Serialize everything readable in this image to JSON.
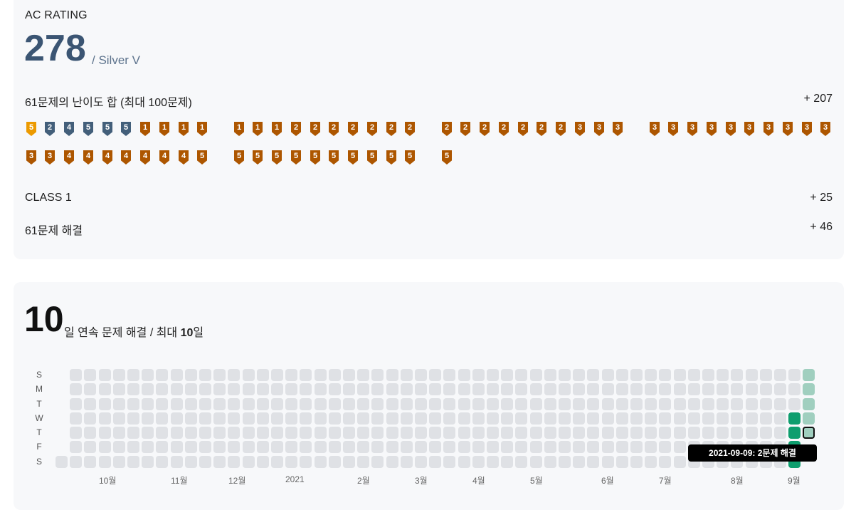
{
  "ac_rating": {
    "label": "AC RATING",
    "value": "278",
    "tier": "/ Silver V",
    "difficulty_sum_label": "61문제의 난이도 합 (최대 100문제)",
    "difficulty_sum_value": "+ 207",
    "class_label": "CLASS 1",
    "class_value": "+ 25",
    "solved_label": "61문제 해결",
    "solved_value": "+ 46",
    "badge_colors": {
      "bronze": "#ad5600",
      "silver": "#435f7a",
      "gold": "#ec9a00"
    },
    "badges": [
      {
        "tier": "gold",
        "level": "5"
      },
      {
        "tier": "silver",
        "level": "2"
      },
      {
        "tier": "silver",
        "level": "4"
      },
      {
        "tier": "silver",
        "level": "5"
      },
      {
        "tier": "silver",
        "level": "5"
      },
      {
        "tier": "silver",
        "level": "5"
      },
      {
        "tier": "bronze",
        "level": "1"
      },
      {
        "tier": "bronze",
        "level": "1"
      },
      {
        "tier": "bronze",
        "level": "1"
      },
      {
        "tier": "bronze",
        "level": "1"
      },
      {
        "tier": "bronze",
        "level": "1"
      },
      {
        "tier": "bronze",
        "level": "1"
      },
      {
        "tier": "bronze",
        "level": "1"
      },
      {
        "tier": "bronze",
        "level": "2"
      },
      {
        "tier": "bronze",
        "level": "2"
      },
      {
        "tier": "bronze",
        "level": "2"
      },
      {
        "tier": "bronze",
        "level": "2"
      },
      {
        "tier": "bronze",
        "level": "2"
      },
      {
        "tier": "bronze",
        "level": "2"
      },
      {
        "tier": "bronze",
        "level": "2"
      },
      {
        "tier": "bronze",
        "level": "2"
      },
      {
        "tier": "bronze",
        "level": "2"
      },
      {
        "tier": "bronze",
        "level": "2"
      },
      {
        "tier": "bronze",
        "level": "2"
      },
      {
        "tier": "bronze",
        "level": "2"
      },
      {
        "tier": "bronze",
        "level": "2"
      },
      {
        "tier": "bronze",
        "level": "2"
      },
      {
        "tier": "bronze",
        "level": "3"
      },
      {
        "tier": "bronze",
        "level": "3"
      },
      {
        "tier": "bronze",
        "level": "3"
      },
      {
        "tier": "bronze",
        "level": "3"
      },
      {
        "tier": "bronze",
        "level": "3"
      },
      {
        "tier": "bronze",
        "level": "3"
      },
      {
        "tier": "bronze",
        "level": "3"
      },
      {
        "tier": "bronze",
        "level": "3"
      },
      {
        "tier": "bronze",
        "level": "3"
      },
      {
        "tier": "bronze",
        "level": "3"
      },
      {
        "tier": "bronze",
        "level": "3"
      },
      {
        "tier": "bronze",
        "level": "3"
      },
      {
        "tier": "bronze",
        "level": "3"
      },
      {
        "tier": "bronze",
        "level": "3"
      },
      {
        "tier": "bronze",
        "level": "3"
      },
      {
        "tier": "bronze",
        "level": "4"
      },
      {
        "tier": "bronze",
        "level": "4"
      },
      {
        "tier": "bronze",
        "level": "4"
      },
      {
        "tier": "bronze",
        "level": "4"
      },
      {
        "tier": "bronze",
        "level": "4"
      },
      {
        "tier": "bronze",
        "level": "4"
      },
      {
        "tier": "bronze",
        "level": "4"
      },
      {
        "tier": "bronze",
        "level": "5"
      },
      {
        "tier": "bronze",
        "level": "5"
      },
      {
        "tier": "bronze",
        "level": "5"
      },
      {
        "tier": "bronze",
        "level": "5"
      },
      {
        "tier": "bronze",
        "level": "5"
      },
      {
        "tier": "bronze",
        "level": "5"
      },
      {
        "tier": "bronze",
        "level": "5"
      },
      {
        "tier": "bronze",
        "level": "5"
      },
      {
        "tier": "bronze",
        "level": "5"
      },
      {
        "tier": "bronze",
        "level": "5"
      },
      {
        "tier": "bronze",
        "level": "5"
      },
      {
        "tier": "bronze",
        "level": "5"
      }
    ]
  },
  "streak": {
    "current": "10",
    "text_prefix": "일 연속 문제 해결 / 최대 ",
    "max": "10",
    "text_suffix": "일",
    "day_labels": [
      "S",
      "M",
      "T",
      "W",
      "T",
      "F",
      "S"
    ],
    "month_labels": [
      "10월",
      "11월",
      "12월",
      "2021",
      "2월",
      "3월",
      "4월",
      "5월",
      "6월",
      "7월",
      "8월",
      "9월"
    ],
    "tooltip": "2021-09-09: 2문제 해결",
    "level_colors": {
      "empty": "#dfe1e5",
      "light": "#a0cfbf",
      "dark": "#0e9e6e"
    }
  }
}
